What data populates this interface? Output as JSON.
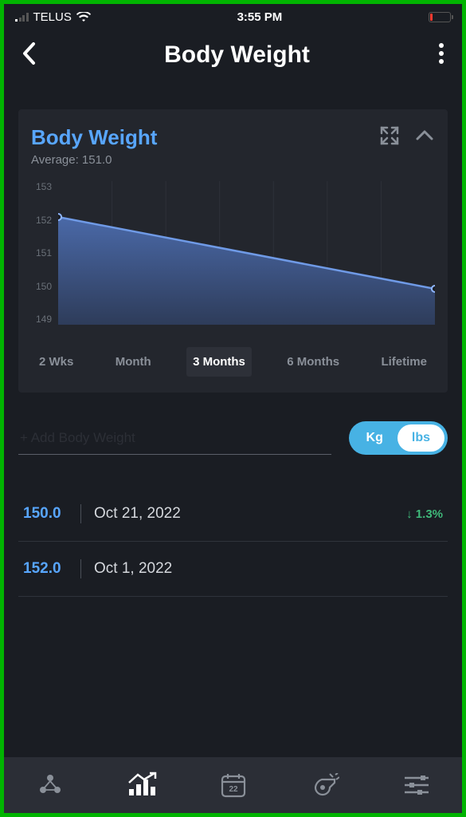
{
  "statusbar": {
    "carrier": "TELUS",
    "time": "3:55 PM",
    "signal_active_bars": 1,
    "battery_low": true
  },
  "header": {
    "title": "Body Weight"
  },
  "card": {
    "title": "Body Weight",
    "average_label": "Average: 151.0"
  },
  "chart": {
    "type": "area",
    "ylim": [
      149,
      153
    ],
    "yticks": [
      153,
      152,
      151,
      150,
      149
    ],
    "points": [
      {
        "x": 0.0,
        "y": 152
      },
      {
        "x": 1.0,
        "y": 150
      }
    ],
    "line_color": "#6f9ae6",
    "fill_top_color": "#4a69a8",
    "fill_bottom_color": "#2e3c5a",
    "marker_radius": 4,
    "marker_fill": "#1a1d23",
    "marker_stroke": "#8fb6ff",
    "grid_color": "#2d3038",
    "background_color": "#23262d",
    "axis_label_color": "#6a7078",
    "axis_fontsize": 12
  },
  "ranges": {
    "items": [
      "2 Wks",
      "Month",
      "3 Months",
      "6 Months",
      "Lifetime"
    ],
    "active_index": 2
  },
  "add": {
    "placeholder": "+ Add Body Weight"
  },
  "unit_toggle": {
    "options": [
      "Kg",
      "lbs"
    ],
    "active_index": 1,
    "bg_color": "#47b2e4",
    "active_bg": "#ffffff",
    "active_text": "#47b2e4"
  },
  "entries": [
    {
      "value": "150.0",
      "date": "Oct 21, 2022",
      "delta": "1.3%",
      "delta_dir": "down",
      "delta_color": "#3fb97a"
    },
    {
      "value": "152.0",
      "date": "Oct 1, 2022",
      "delta": "",
      "delta_dir": "",
      "delta_color": ""
    }
  ],
  "navbar": {
    "active_index": 1,
    "calendar_day": "22"
  },
  "colors": {
    "card_title": "#58a6ff",
    "entry_value": "#58a6ff",
    "bg": "#1a1d23",
    "card_bg": "#23262d",
    "muted": "#8a9099"
  }
}
